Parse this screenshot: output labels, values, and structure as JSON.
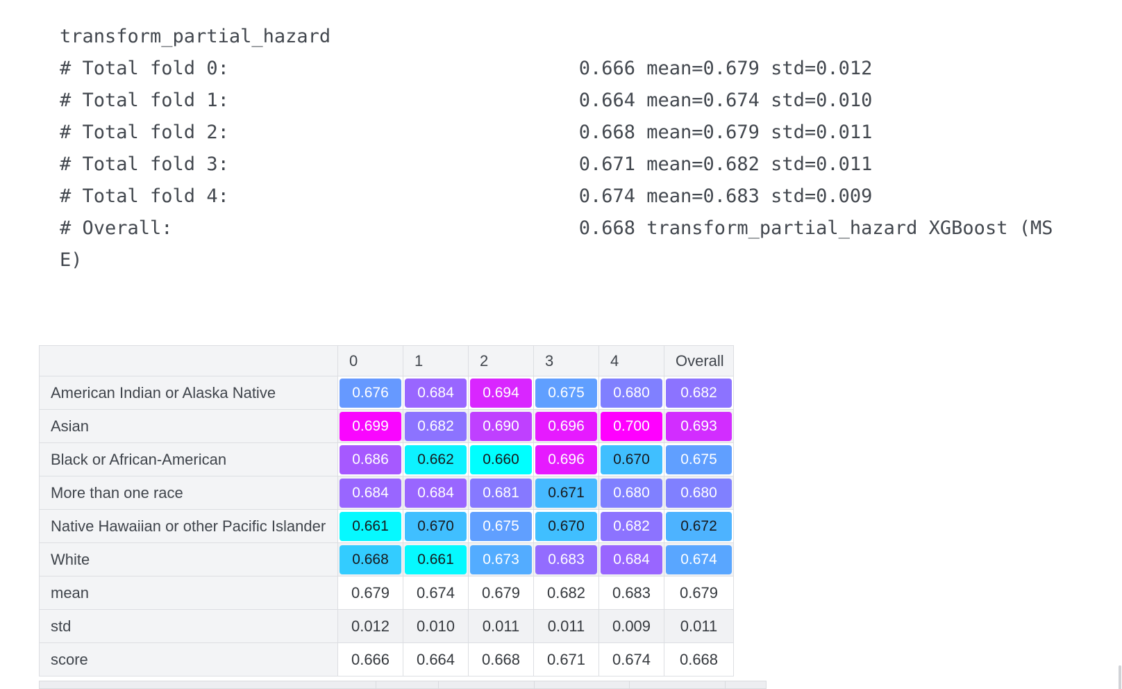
{
  "console": {
    "lines": [
      "transform_partial_hazard",
      "# Total fold 0:                               0.666 mean=0.679 std=0.012",
      "# Total fold 1:                               0.664 mean=0.674 std=0.010",
      "# Total fold 2:                               0.668 mean=0.679 std=0.011",
      "# Total fold 3:                               0.671 mean=0.682 std=0.011",
      "# Total fold 4:                               0.674 mean=0.683 std=0.009",
      "# Overall:                                    0.668 transform_partial_hazard XGBoost (MS",
      "E)"
    ]
  },
  "table": {
    "corner_label": "",
    "columns": [
      "0",
      "1",
      "2",
      "3",
      "4",
      "Overall"
    ],
    "rows": [
      {
        "label": "American Indian or Alaska Native",
        "cells": [
          {
            "v": "0.676",
            "bg": "#6699FF",
            "fg": "#ffffff"
          },
          {
            "v": "0.684",
            "bg": "#9966FF",
            "fg": "#ffffff"
          },
          {
            "v": "0.694",
            "bg": "#D926FF",
            "fg": "#ffffff"
          },
          {
            "v": "0.675",
            "bg": "#609FFF",
            "fg": "#ffffff"
          },
          {
            "v": "0.680",
            "bg": "#8080FF",
            "fg": "#ffffff"
          },
          {
            "v": "0.682",
            "bg": "#8C73FF",
            "fg": "#ffffff"
          }
        ]
      },
      {
        "label": "Asian",
        "cells": [
          {
            "v": "0.699",
            "bg": "#F906FF",
            "fg": "#ffffff"
          },
          {
            "v": "0.682",
            "bg": "#8C73FF",
            "fg": "#ffffff"
          },
          {
            "v": "0.690",
            "bg": "#BF40FF",
            "fg": "#ffffff"
          },
          {
            "v": "0.696",
            "bg": "#E61AFF",
            "fg": "#ffffff"
          },
          {
            "v": "0.700",
            "bg": "#FF00FF",
            "fg": "#ffffff"
          },
          {
            "v": "0.693",
            "bg": "#D22DFF",
            "fg": "#ffffff"
          }
        ]
      },
      {
        "label": "Black or African-American",
        "cells": [
          {
            "v": "0.686",
            "bg": "#A659FF",
            "fg": "#ffffff"
          },
          {
            "v": "0.662",
            "bg": "#0DF2FF",
            "fg": "#17191d"
          },
          {
            "v": "0.660",
            "bg": "#00FFFF",
            "fg": "#17191d"
          },
          {
            "v": "0.696",
            "bg": "#E61AFF",
            "fg": "#ffffff"
          },
          {
            "v": "0.670",
            "bg": "#40BFFF",
            "fg": "#17191d"
          },
          {
            "v": "0.675",
            "bg": "#609FFF",
            "fg": "#ffffff"
          }
        ]
      },
      {
        "label": "More than one race",
        "cells": [
          {
            "v": "0.684",
            "bg": "#9966FF",
            "fg": "#ffffff"
          },
          {
            "v": "0.684",
            "bg": "#9966FF",
            "fg": "#ffffff"
          },
          {
            "v": "0.681",
            "bg": "#8679FF",
            "fg": "#ffffff"
          },
          {
            "v": "0.671",
            "bg": "#46B9FF",
            "fg": "#17191d"
          },
          {
            "v": "0.680",
            "bg": "#8080FF",
            "fg": "#ffffff"
          },
          {
            "v": "0.680",
            "bg": "#8080FF",
            "fg": "#ffffff"
          }
        ]
      },
      {
        "label": "Native Hawaiian or other Pacific Islander",
        "cells": [
          {
            "v": "0.661",
            "bg": "#06F9FF",
            "fg": "#17191d"
          },
          {
            "v": "0.670",
            "bg": "#40BFFF",
            "fg": "#17191d"
          },
          {
            "v": "0.675",
            "bg": "#609FFF",
            "fg": "#ffffff"
          },
          {
            "v": "0.670",
            "bg": "#40BFFF",
            "fg": "#17191d"
          },
          {
            "v": "0.682",
            "bg": "#8C73FF",
            "fg": "#ffffff"
          },
          {
            "v": "0.672",
            "bg": "#4DB3FF",
            "fg": "#17191d"
          }
        ]
      },
      {
        "label": "White",
        "cells": [
          {
            "v": "0.668",
            "bg": "#33CCFF",
            "fg": "#17191d"
          },
          {
            "v": "0.661",
            "bg": "#06F9FF",
            "fg": "#17191d"
          },
          {
            "v": "0.673",
            "bg": "#53ACFF",
            "fg": "#ffffff"
          },
          {
            "v": "0.683",
            "bg": "#936CFF",
            "fg": "#ffffff"
          },
          {
            "v": "0.684",
            "bg": "#9966FF",
            "fg": "#ffffff"
          },
          {
            "v": "0.674",
            "bg": "#59A6FF",
            "fg": "#ffffff"
          }
        ]
      },
      {
        "label": "mean",
        "cells": [
          "0.679",
          "0.674",
          "0.679",
          "0.682",
          "0.683",
          "0.679"
        ]
      },
      {
        "label": "std",
        "cells": [
          "0.012",
          "0.010",
          "0.011",
          "0.011",
          "0.009",
          "0.011"
        ]
      },
      {
        "label": "score",
        "cells": [
          "0.666",
          "0.664",
          "0.668",
          "0.671",
          "0.674",
          "0.668"
        ]
      }
    ]
  }
}
